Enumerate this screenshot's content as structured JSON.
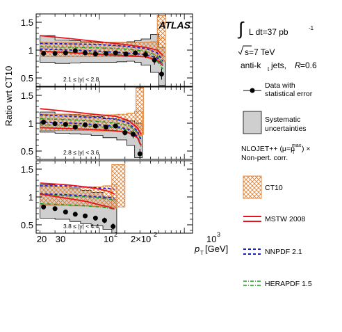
{
  "chart_data": {
    "type": "line",
    "experiment": "ATLAS",
    "ylabel": "Ratio wrt CT10",
    "xlabel": "p",
    "xlabel_sub": "T",
    "xlabel_unit": "[GeV]",
    "x_ticklabels": [
      "20",
      "30",
      "10",
      "2",
      "2×10",
      "10",
      "3"
    ],
    "xlim": [
      18,
      1250
    ],
    "x_scale": "log",
    "ylim": [
      0.35,
      1.65
    ],
    "y_ticks": [
      0.5,
      1,
      1.5
    ],
    "y_ticklabels": [
      "0.5",
      "1",
      "1.5"
    ],
    "legend_position": "right",
    "info": {
      "lumi_prefix": "L dt=37 pb",
      "lumi_exp": "-1",
      "energy": "s=7 TeV",
      "jets_prefix": "anti-k",
      "jets_sub": "t",
      "jets_suffix": " jets, ",
      "radius_var": "R",
      "radius_val": "=0.6"
    },
    "legend": [
      {
        "key": "data",
        "line1": "Data with",
        "line2": "statistical error"
      },
      {
        "key": "syst",
        "line1": "Systematic",
        "line2": "uncertainties"
      },
      {
        "key": "theory_note",
        "line1_a": "NLOJET++ (μ=p",
        "line1_sup": "max",
        "line1_sub": "T",
        "line1_b": ") ×",
        "line2": "Non-pert. corr."
      },
      {
        "key": "ct10",
        "label": "CT10"
      },
      {
        "key": "mstw",
        "label": "MSTW 2008"
      },
      {
        "key": "nnpdf",
        "label": "NNPDF 2.1"
      },
      {
        "key": "herapdf",
        "label": "HERAPDF 1.5"
      }
    ],
    "colors": {
      "data": "#000000",
      "syst": "#cfcfcf",
      "ct10": "#e07a2a",
      "mstw": "#e8141c",
      "nnpdf": "#1c1cc8",
      "herapdf": "#1a9a1a"
    },
    "panels": [
      {
        "label": "2.1 ≤ |y| < 2.8",
        "bins": [
          20,
          30,
          45,
          60,
          80,
          110,
          160,
          210,
          260,
          310,
          400,
          500,
          600
        ],
        "ct10_hi": [
          1.14,
          1.14,
          1.14,
          1.14,
          1.14,
          1.14,
          1.14,
          1.14,
          1.14,
          1.14,
          1.15,
          1.22
        ],
        "ct10_lo": [
          0.88,
          0.88,
          0.88,
          0.88,
          0.88,
          0.88,
          0.88,
          0.88,
          0.88,
          0.88,
          0.86,
          0.8
        ],
        "extra_ct10_bins": [
          [
            480,
            600
          ]
        ],
        "extra_ct10_hi": [
          1.62
        ],
        "extra_ct10_lo": [
          0.88
        ],
        "syst_hi": [
          1.26,
          1.18,
          1.17,
          1.15,
          1.13,
          1.14,
          1.14,
          1.15,
          1.17,
          1.2,
          1.28,
          1.05
        ],
        "syst_lo": [
          0.78,
          0.76,
          0.77,
          0.78,
          0.78,
          0.78,
          0.79,
          0.8,
          0.78,
          0.73,
          0.6,
          0.37
        ],
        "data_x": [
          22,
          30,
          40,
          52,
          68,
          90,
          120,
          155,
          205,
          265,
          350,
          445,
          540
        ],
        "data_y": [
          0.94,
          0.94,
          0.95,
          0.99,
          0.95,
          0.93,
          0.94,
          0.95,
          0.93,
          0.95,
          0.92,
          0.82,
          0.57
        ],
        "err": [
          0.02,
          0.02,
          0.02,
          0.02,
          0.02,
          0.02,
          0.02,
          0.03,
          0.03,
          0.04,
          0.06,
          0.08,
          0.1
        ],
        "mstw_x": [
          20,
          50,
          100,
          200,
          350,
          480,
          560
        ],
        "mstw_hi": [
          1.26,
          1.2,
          1.15,
          1.1,
          1.05,
          1.0,
          0.9
        ],
        "mstw_lo": [
          0.98,
          0.95,
          0.92,
          0.9,
          0.88,
          0.82,
          0.72
        ],
        "nnpdf_x": [
          20,
          50,
          100,
          200,
          350,
          480,
          560
        ],
        "nnpdf_hi": [
          1.12,
          1.11,
          1.1,
          1.07,
          1.03,
          0.95,
          0.8
        ],
        "nnpdf_lo": [
          1.02,
          1.0,
          0.98,
          0.95,
          0.92,
          0.86,
          0.72
        ],
        "hera_x": [
          20,
          50,
          100,
          200,
          350,
          480,
          560
        ],
        "hera_hi": [
          1.06,
          1.05,
          1.04,
          1.02,
          0.98,
          0.9,
          0.75
        ],
        "hera_lo": [
          0.98,
          0.96,
          0.94,
          0.92,
          0.88,
          0.8,
          0.66
        ]
      },
      {
        "label": "2.8 ≤ |y| < 3.6",
        "bins": [
          20,
          30,
          45,
          60,
          80,
          110,
          160,
          210,
          260,
          320
        ],
        "ct10_hi": [
          1.16,
          1.16,
          1.16,
          1.15,
          1.15,
          1.15,
          1.16,
          1.18,
          1.22
        ],
        "ct10_lo": [
          0.87,
          0.87,
          0.87,
          0.87,
          0.86,
          0.86,
          0.85,
          0.82,
          0.78
        ],
        "extra_ct10_bins": [
          [
            270,
            330
          ]
        ],
        "extra_ct10_hi": [
          1.64
        ],
        "extra_ct10_lo": [
          0.8
        ],
        "syst_hi": [
          1.2,
          1.16,
          1.15,
          1.14,
          1.12,
          1.08,
          1.06,
          1.04,
          1.0
        ],
        "syst_lo": [
          0.84,
          0.82,
          0.81,
          0.8,
          0.78,
          0.74,
          0.7,
          0.6,
          0.38
        ],
        "data_x": [
          22,
          30,
          40,
          52,
          68,
          90,
          120,
          155,
          200,
          250,
          300
        ],
        "data_y": [
          1.02,
          0.99,
          0.98,
          0.93,
          0.97,
          0.95,
          0.93,
          0.95,
          0.83,
          0.8,
          0.45
        ],
        "err": [
          0.03,
          0.03,
          0.03,
          0.03,
          0.03,
          0.03,
          0.04,
          0.04,
          0.05,
          0.07,
          0.09
        ],
        "mstw_x": [
          20,
          50,
          100,
          160,
          220,
          280,
          310
        ],
        "mstw_hi": [
          1.26,
          1.2,
          1.15,
          1.12,
          1.05,
          0.92,
          0.8
        ],
        "mstw_lo": [
          0.92,
          0.9,
          0.88,
          0.86,
          0.83,
          0.74,
          0.6
        ],
        "nnpdf_x": [
          20,
          50,
          100,
          160,
          220,
          280,
          310
        ],
        "nnpdf_hi": [
          1.15,
          1.12,
          1.1,
          1.07,
          1.0,
          0.86,
          0.7
        ],
        "nnpdf_lo": [
          1.02,
          1.0,
          0.97,
          0.94,
          0.89,
          0.76,
          0.6
        ],
        "hera_x": [
          20,
          50,
          100,
          160,
          220,
          280,
          310
        ],
        "hera_hi": [
          1.08,
          1.06,
          1.03,
          1.0,
          0.96,
          0.84,
          0.68
        ],
        "hera_lo": [
          0.97,
          0.96,
          0.94,
          0.92,
          0.87,
          0.74,
          0.57
        ]
      },
      {
        "label": "3.8 ≤ |y| < 4.4",
        "bins": [
          20,
          30,
          45,
          60,
          80,
          110,
          140,
          160
        ],
        "ct10_hi": [
          1.2,
          1.18,
          1.17,
          1.17,
          1.18,
          1.2,
          1.22
        ],
        "ct10_lo": [
          0.85,
          0.85,
          0.84,
          0.84,
          0.83,
          0.82,
          0.8
        ],
        "extra_ct10_bins": [
          [
            140,
            200
          ]
        ],
        "extra_ct10_hi": [
          1.58
        ],
        "extra_ct10_lo": [
          0.82
        ],
        "syst_hi": [
          1.22,
          1.18,
          1.15,
          1.12,
          1.08,
          1.0,
          0.95
        ],
        "syst_lo": [
          0.62,
          0.6,
          0.56,
          0.52,
          0.48,
          0.42,
          0.35
        ],
        "data_x": [
          22,
          30,
          40,
          52,
          68,
          90,
          115,
          145
        ],
        "data_y": [
          0.82,
          0.79,
          0.73,
          0.69,
          0.66,
          0.62,
          0.58,
          0.47
        ],
        "err": [
          0.03,
          0.03,
          0.03,
          0.03,
          0.04,
          0.04,
          0.05,
          0.06
        ],
        "mstw_x": [
          20,
          40,
          70,
          100,
          130,
          150
        ],
        "mstw_hi": [
          1.25,
          1.22,
          1.18,
          1.14,
          1.1,
          1.05
        ],
        "mstw_lo": [
          1.05,
          0.98,
          0.92,
          0.86,
          0.82,
          0.78
        ],
        "nnpdf_x": [
          20,
          40,
          70,
          100,
          130,
          150
        ],
        "nnpdf_hi": [
          1.2,
          1.2,
          1.18,
          1.16,
          1.15,
          1.14
        ],
        "nnpdf_lo": [
          1.06,
          1.04,
          1.02,
          1.0,
          0.99,
          0.98
        ],
        "hera_x": [
          20,
          40,
          70,
          100,
          130,
          150
        ],
        "hera_hi": [
          1.05,
          1.02,
          1.0,
          0.98,
          0.96,
          0.94
        ],
        "hera_lo": [
          0.88,
          0.86,
          0.84,
          0.82,
          0.8,
          0.78
        ]
      }
    ]
  }
}
